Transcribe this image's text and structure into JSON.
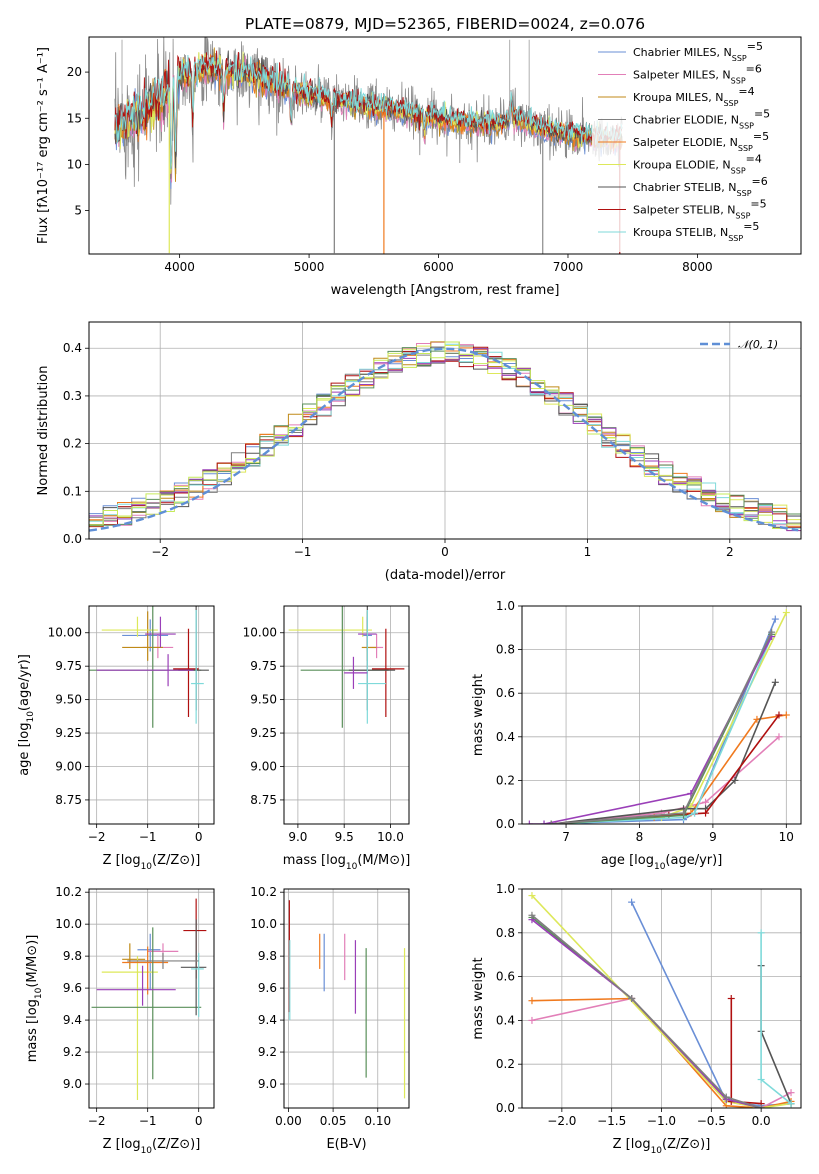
{
  "colors": {
    "Chabrier MILES": "#6a8fd6",
    "Salpeter MILES": "#e27fb8",
    "Kroupa MILES": "#c08a18",
    "Chabrier ELODIE": "#7f7f7f",
    "Salpeter ELODIE": "#f07a1f",
    "Kroupa ELODIE": "#dde85a",
    "Chabrier STELIB": "#555555",
    "Salpeter STELIB": "#b01010",
    "Kroupa STELIB": "#7fdada",
    "extra_green": "#5a8f5a",
    "extra_purple": "#9a3fb8",
    "extra_lime": "#c6ea5a",
    "normal": "#5f8fd6"
  },
  "chart_data": [
    {
      "id": "spectrum",
      "type": "line",
      "title": "PLATE=0879, MJD=52365, FIBERID=0024, z=0.076",
      "xlabel": "wavelength [Angstrom, rest frame]",
      "ylabel": "Flux [fλ10⁻¹⁷ erg cm⁻² s⁻¹ A⁻¹]",
      "xlim": [
        3300,
        8800
      ],
      "ylim": [
        0.3,
        23.8
      ],
      "xticks": [
        4000,
        5000,
        6000,
        7000,
        8000
      ],
      "yticks": [
        5,
        10,
        15,
        20
      ],
      "legend_position": "top-right",
      "legend": [
        {
          "name": "Chabrier MILES, N",
          "sub": "SSP",
          "tail": "=5"
        },
        {
          "name": "Salpeter MILES, N",
          "sub": "SSP",
          "tail": "=6"
        },
        {
          "name": "Kroupa MILES, N",
          "sub": "SSP",
          "tail": "=4"
        },
        {
          "name": "Chabrier ELODIE, N",
          "sub": "SSP",
          "tail": "=5"
        },
        {
          "name": "Salpeter ELODIE, N",
          "sub": "SSP",
          "tail": "=5"
        },
        {
          "name": "Kroupa ELODIE, N",
          "sub": "SSP",
          "tail": "=4"
        },
        {
          "name": "Chabrier STELIB, N",
          "sub": "SSP",
          "tail": "=6"
        },
        {
          "name": "Salpeter STELIB, N",
          "sub": "SSP",
          "tail": "=5"
        },
        {
          "name": "Kroupa STELIB, N",
          "sub": "SSP",
          "tail": "=5"
        }
      ],
      "continuum": {
        "x": [
          3500,
          3700,
          3900,
          4000,
          4200,
          4400,
          4600,
          4800,
          5000,
          5200,
          5400,
          5600,
          5800,
          6000,
          6200,
          6400,
          6600,
          6800,
          7000,
          7200,
          7400,
          7600,
          7800,
          8000,
          8200,
          8400,
          8600
        ],
        "y": [
          14.0,
          15.5,
          17.5,
          19.5,
          20.5,
          20.0,
          19.5,
          18.5,
          17.5,
          17.0,
          16.5,
          16.0,
          15.5,
          15.0,
          14.6,
          14.2,
          15.0,
          13.8,
          13.3,
          13.0,
          12.7,
          12.4,
          13.0,
          13.6,
          13.8,
          14.0,
          14.2
        ]
      }
    },
    {
      "id": "residuals",
      "type": "histogram",
      "xlabel": "(data-model)/error",
      "ylabel": "Normed distribution",
      "xlim": [
        -2.5,
        2.5
      ],
      "ylim": [
        0,
        0.455
      ],
      "xticks": [
        -2,
        -1,
        0,
        1,
        2
      ],
      "yticks": [
        0.0,
        0.1,
        0.2,
        0.3,
        0.4
      ],
      "grid": true,
      "legend_position": "top-right",
      "legend": [
        {
          "name": "𝒩(0, 1)"
        }
      ],
      "curve": {
        "mean": 0,
        "sigma": 1
      }
    },
    {
      "id": "age_vs_Z",
      "type": "scatter",
      "xlabel": "Z [log₁₀(Z/Z⊙)]",
      "ylabel": "age  [log₁₀(age/yr)]",
      "xlim": [
        -2.15,
        0.3
      ],
      "ylim": [
        8.57,
        10.2
      ],
      "xticks": [
        -2,
        -1,
        0
      ],
      "yticks": [
        8.75,
        9.0,
        9.25,
        9.5,
        9.75,
        10.0
      ],
      "grid": true,
      "points": [
        {
          "x": -0.95,
          "y": 9.98,
          "xerr": [
            0.55,
            0.35
          ],
          "yerr": [
            0.12,
            0.12
          ],
          "color": "Chabrier MILES"
        },
        {
          "x": -0.8,
          "y": 9.89,
          "xerr": [
            0.3,
            0.3
          ],
          "yerr": [
            0.08,
            0.1
          ],
          "color": "Salpeter MILES"
        },
        {
          "x": -1.0,
          "y": 9.89,
          "xerr": [
            0.5,
            0.3
          ],
          "yerr": [
            0.1,
            0.27
          ],
          "color": "Kroupa MILES"
        },
        {
          "x": -1.2,
          "y": 10.02,
          "xerr": [
            0.7,
            0.4
          ],
          "yerr": [
            0.05,
            0.1
          ],
          "color": "Kroupa ELODIE"
        },
        {
          "x": -0.75,
          "y": 9.99,
          "xerr": [
            0.3,
            0.3
          ],
          "yerr": [
            0.1,
            0.13
          ],
          "color": "extra_purple"
        },
        {
          "x": -0.9,
          "y": 9.72,
          "xerr": [
            1.25,
            0.95
          ],
          "yerr": [
            0.43,
            1.09
          ],
          "color": "extra_green"
        },
        {
          "x": -0.2,
          "y": 9.73,
          "xerr": [
            0.3,
            0.2
          ],
          "yerr": [
            0.36,
            0.3
          ],
          "color": "Salpeter STELIB"
        },
        {
          "x": -0.05,
          "y": 9.72,
          "xerr": [
            0.35,
            0.25
          ],
          "yerr": [
            0.3,
            0.6
          ],
          "color": "Chabrier STELIB"
        },
        {
          "x": -0.05,
          "y": 9.62,
          "xerr": [
            0.1,
            0.15
          ],
          "yerr": [
            0.3,
            0.55
          ],
          "color": "Kroupa STELIB"
        },
        {
          "x": -0.6,
          "y": 9.72,
          "xerr": [
            1.4,
            0.5
          ],
          "yerr": [
            0.12,
            0.12
          ],
          "color": "extra_purple"
        }
      ]
    },
    {
      "id": "age_vs_mass",
      "type": "scatter",
      "xlabel": "mass [log₁₀(M/M⊙)]",
      "ylabel": "",
      "xlim": [
        8.85,
        10.2
      ],
      "ylim": [
        8.57,
        10.2
      ],
      "xticks": [
        9.0,
        9.5,
        10.0
      ],
      "yticks": [
        8.75,
        9.0,
        9.25,
        9.5,
        9.75,
        10.0
      ],
      "grid": true,
      "points": [
        {
          "x": 9.75,
          "y": 9.98,
          "xerr": [
            0.05,
            0.05
          ],
          "yerr": [
            0.12,
            0.12
          ],
          "color": "Chabrier MILES"
        },
        {
          "x": 9.85,
          "y": 9.89,
          "xerr": [
            0.07,
            0.07
          ],
          "yerr": [
            0.08,
            0.1
          ],
          "color": "Salpeter MILES"
        },
        {
          "x": 9.75,
          "y": 9.89,
          "xerr": [
            0.06,
            0.1
          ],
          "yerr": [
            0.1,
            0.27
          ],
          "color": "Kroupa MILES"
        },
        {
          "x": 9.7,
          "y": 10.02,
          "xerr": [
            0.8,
            0.1
          ],
          "yerr": [
            0.05,
            0.1
          ],
          "color": "Kroupa ELODIE"
        },
        {
          "x": 9.75,
          "y": 9.99,
          "xerr": [
            0.1,
            0.1
          ],
          "yerr": [
            0.1,
            0.13
          ],
          "color": "extra_purple"
        },
        {
          "x": 9.48,
          "y": 9.72,
          "xerr": [
            0.45,
            0.5
          ],
          "yerr": [
            0.43,
            1.09
          ],
          "color": "extra_green"
        },
        {
          "x": 9.95,
          "y": 9.73,
          "xerr": [
            0.15,
            0.2
          ],
          "yerr": [
            0.36,
            0.3
          ],
          "color": "Salpeter STELIB"
        },
        {
          "x": 9.75,
          "y": 9.72,
          "xerr": [
            0.2,
            0.3
          ],
          "yerr": [
            0.3,
            0.6
          ],
          "color": "Chabrier STELIB"
        },
        {
          "x": 9.75,
          "y": 9.62,
          "xerr": [
            0.1,
            0.2
          ],
          "yerr": [
            0.3,
            0.55
          ],
          "color": "Kroupa STELIB"
        },
        {
          "x": 9.6,
          "y": 9.7,
          "xerr": [
            0.1,
            0.15
          ],
          "yerr": [
            0.12,
            0.12
          ],
          "color": "extra_purple"
        }
      ]
    },
    {
      "id": "weight_vs_age",
      "type": "line",
      "xlabel": "age  [log₁₀(age/yr)]",
      "ylabel": "mass weight",
      "xlim": [
        6.4,
        10.2
      ],
      "ylim": [
        0,
        1.0
      ],
      "xticks": [
        7,
        8,
        9,
        10
      ],
      "yticks": [
        0.0,
        0.2,
        0.4,
        0.6,
        0.8,
        1.0
      ],
      "grid": true,
      "series": [
        {
          "color": "Chabrier MILES",
          "x": [
            6.7,
            8.6,
            8.75,
            9.85
          ],
          "y": [
            0.0,
            0.02,
            0.05,
            0.94
          ]
        },
        {
          "color": "Salpeter MILES",
          "x": [
            6.8,
            8.3,
            8.9,
            9.9
          ],
          "y": [
            0.0,
            0.05,
            0.1,
            0.4
          ]
        },
        {
          "color": "Salpeter ELODIE",
          "x": [
            6.8,
            8.2,
            8.7,
            9.6,
            10.0
          ],
          "y": [
            0.0,
            0.03,
            0.05,
            0.48,
            0.5
          ]
        },
        {
          "color": "Kroupa ELODIE",
          "x": [
            6.8,
            8.3,
            8.7,
            10.0
          ],
          "y": [
            0.0,
            0.03,
            0.08,
            0.97
          ]
        },
        {
          "color": "Chabrier STELIB",
          "x": [
            6.8,
            8.6,
            8.9,
            9.3,
            9.85
          ],
          "y": [
            0.0,
            0.07,
            0.07,
            0.2,
            0.65
          ]
        },
        {
          "color": "Salpeter STELIB",
          "x": [
            6.8,
            8.4,
            8.9,
            9.9
          ],
          "y": [
            0.0,
            0.04,
            0.05,
            0.5
          ]
        },
        {
          "color": "Kroupa STELIB",
          "x": [
            6.8,
            8.6,
            8.75,
            9.8
          ],
          "y": [
            0.0,
            0.03,
            0.05,
            0.86
          ]
        },
        {
          "color": "extra_green",
          "x": [
            6.8,
            8.6,
            9.8
          ],
          "y": [
            0.0,
            0.04,
            0.87
          ]
        },
        {
          "color": "extra_purple",
          "x": [
            6.5,
            6.7,
            8.7,
            9.8
          ],
          "y": [
            0.0,
            0.0,
            0.14,
            0.86
          ]
        },
        {
          "color": "Chabrier ELODIE",
          "x": [
            6.8,
            8.6,
            9.8
          ],
          "y": [
            0.0,
            0.05,
            0.88
          ]
        }
      ]
    },
    {
      "id": "mass_vs_Z",
      "type": "scatter",
      "xlabel": "Z [log₁₀(Z/Z⊙)]",
      "ylabel": "mass [log₁₀(M/M⊙)]",
      "xlim": [
        -2.15,
        0.3
      ],
      "ylim": [
        8.85,
        10.22
      ],
      "xticks": [
        -2,
        -1,
        0
      ],
      "yticks": [
        9.0,
        9.2,
        9.4,
        9.6,
        9.8,
        10.0,
        10.2
      ],
      "grid": true,
      "points": [
        {
          "x": -0.95,
          "y": 9.84,
          "xerr": [
            0.25,
            0.2
          ],
          "yerr": [
            0.25,
            0.1
          ],
          "color": "Chabrier MILES"
        },
        {
          "x": -0.7,
          "y": 9.83,
          "xerr": [
            0.3,
            0.3
          ],
          "yerr": [
            0.05,
            0.05
          ],
          "color": "Salpeter MILES"
        },
        {
          "x": -1.35,
          "y": 9.78,
          "xerr": [
            0.15,
            0.3
          ],
          "yerr": [
            0.06,
            0.1
          ],
          "color": "Kroupa MILES"
        },
        {
          "x": -1.2,
          "y": 9.7,
          "xerr": [
            0.7,
            0.4
          ],
          "yerr": [
            0.8,
            0.1
          ],
          "color": "Kroupa ELODIE"
        },
        {
          "x": -1.0,
          "y": 9.76,
          "xerr": [
            0.5,
            0.4
          ],
          "yerr": [
            0.2,
            0.1
          ],
          "color": "Salpeter ELODIE"
        },
        {
          "x": -0.9,
          "y": 9.48,
          "xerr": [
            1.2,
            0.95
          ],
          "yerr": [
            0.45,
            0.5
          ],
          "color": "extra_green"
        },
        {
          "x": -1.1,
          "y": 9.59,
          "xerr": [
            0.9,
            0.65
          ],
          "yerr": [
            0.1,
            0.15
          ],
          "color": "extra_purple"
        },
        {
          "x": -0.05,
          "y": 9.96,
          "xerr": [
            0.25,
            0.2
          ],
          "yerr": [
            0.3,
            0.2
          ],
          "color": "Salpeter STELIB"
        },
        {
          "x": -0.05,
          "y": 9.73,
          "xerr": [
            0.3,
            0.2
          ],
          "yerr": [
            0.3,
            0.3
          ],
          "color": "Chabrier STELIB"
        },
        {
          "x": 0.0,
          "y": 9.72,
          "xerr": [
            0.15,
            0.1
          ],
          "yerr": [
            0.3,
            0.1
          ],
          "color": "Kroupa STELIB"
        },
        {
          "x": -0.7,
          "y": 9.77,
          "xerr": [
            0.7,
            0.7
          ],
          "yerr": [
            0.05,
            0.05
          ],
          "color": "Chabrier ELODIE"
        }
      ]
    },
    {
      "id": "mass_vs_EBV",
      "type": "errorbar",
      "xlabel": "E(B-V)",
      "ylabel": "",
      "xlim": [
        -0.005,
        0.135
      ],
      "ylim": [
        8.85,
        10.22
      ],
      "xticks": [
        0.0,
        0.05,
        0.1
      ],
      "yticks": [
        9.0,
        9.2,
        9.4,
        9.6,
        9.8,
        10.0,
        10.2
      ],
      "grid": true,
      "points": [
        {
          "x": 0.001,
          "ylo": 9.45,
          "yhi": 10.15,
          "color": "Salpeter STELIB"
        },
        {
          "x": 0.0015,
          "ylo": 9.4,
          "yhi": 9.9,
          "color": "Kroupa STELIB"
        },
        {
          "x": 0.035,
          "ylo": 9.72,
          "yhi": 9.94,
          "color": "Salpeter ELODIE"
        },
        {
          "x": 0.04,
          "ylo": 9.58,
          "yhi": 9.94,
          "color": "Chabrier MILES"
        },
        {
          "x": 0.063,
          "ylo": 9.65,
          "yhi": 9.94,
          "color": "Salpeter MILES"
        },
        {
          "x": 0.075,
          "ylo": 9.44,
          "yhi": 9.9,
          "color": "extra_purple"
        },
        {
          "x": 0.087,
          "ylo": 9.04,
          "yhi": 9.85,
          "color": "extra_green"
        },
        {
          "x": 0.13,
          "ylo": 8.91,
          "yhi": 9.85,
          "color": "Kroupa ELODIE"
        }
      ]
    },
    {
      "id": "weight_vs_Z",
      "type": "line",
      "xlabel": "Z [log₁₀(Z/Z⊙)]",
      "ylabel": "mass weight",
      "xlim": [
        -2.4,
        0.4
      ],
      "ylim": [
        0,
        1.0
      ],
      "xticks": [
        -2.0,
        -1.5,
        -1.0,
        -0.5,
        0.0
      ],
      "yticks": [
        0.0,
        0.2,
        0.4,
        0.6,
        0.8,
        1.0
      ],
      "grid": true,
      "series": [
        {
          "color": "Chabrier MILES",
          "x": [
            -1.3,
            -0.35,
            0.0,
            0.3
          ],
          "y": [
            0.94,
            0.03,
            0.01,
            0.02
          ]
        },
        {
          "color": "Salpeter MILES",
          "x": [
            -2.3,
            -1.3,
            -0.35,
            0.0,
            0.3
          ],
          "y": [
            0.4,
            0.5,
            0.03,
            0.0,
            0.07
          ]
        },
        {
          "color": "Salpeter ELODIE",
          "x": [
            -2.3,
            -1.3,
            -0.35,
            0.0,
            0.3
          ],
          "y": [
            0.49,
            0.5,
            0.01,
            0.0,
            0.03
          ]
        },
        {
          "color": "Kroupa ELODIE",
          "x": [
            -2.3,
            -0.35,
            0.0,
            0.3
          ],
          "y": [
            0.97,
            0.03,
            0.0,
            0.02
          ]
        },
        {
          "color": "Chabrier STELIB",
          "x": [
            0.0,
            0.0,
            0.3
          ],
          "y": [
            0.65,
            0.35,
            0.02
          ]
        },
        {
          "color": "Salpeter STELIB",
          "x": [
            -0.3,
            -0.3,
            0.0
          ],
          "y": [
            0.5,
            0.03,
            0.02
          ]
        },
        {
          "color": "Kroupa STELIB",
          "x": [
            0.0,
            0.0,
            0.3
          ],
          "y": [
            0.8,
            0.13,
            0.02
          ]
        },
        {
          "color": "extra_green",
          "x": [
            -2.3,
            -1.3,
            -0.35,
            0.0
          ],
          "y": [
            0.87,
            0.5,
            0.04,
            0.0
          ]
        },
        {
          "color": "extra_purple",
          "x": [
            -2.3,
            -1.3,
            -0.35,
            0.0
          ],
          "y": [
            0.86,
            0.5,
            0.04,
            0.0
          ]
        },
        {
          "color": "Chabrier ELODIE",
          "x": [
            -2.3,
            -1.3,
            -0.35,
            0.0
          ],
          "y": [
            0.88,
            0.5,
            0.05,
            0.0
          ]
        }
      ]
    }
  ]
}
